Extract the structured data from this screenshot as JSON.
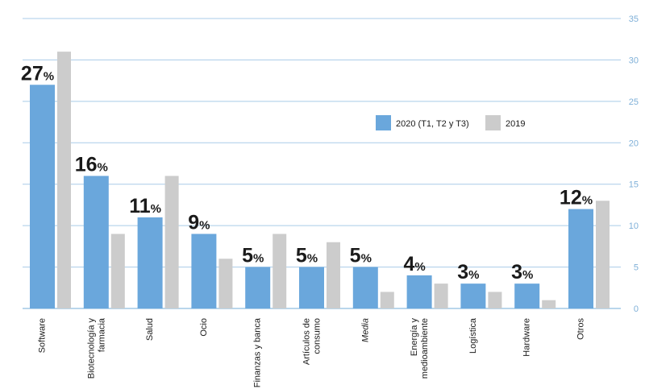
{
  "chart_data": {
    "type": "bar",
    "categories": [
      [
        "Software"
      ],
      [
        "Biotecnología y",
        "farmacia"
      ],
      [
        "Salud"
      ],
      [
        "Ocio"
      ],
      [
        "Finanzas y banca"
      ],
      [
        "Artículos de",
        "consumo"
      ],
      [
        "Media"
      ],
      [
        "Energía y",
        "medioambiente"
      ],
      [
        "Logística"
      ],
      [
        "Hardware"
      ],
      [
        "Otros"
      ]
    ],
    "category_italic": [
      false,
      false,
      false,
      false,
      false,
      false,
      true,
      false,
      false,
      false,
      false
    ],
    "series": [
      {
        "name": "2020 (T1, T2 y T3)",
        "values": [
          27,
          16,
          11,
          9,
          5,
          5,
          5,
          4,
          3,
          3,
          12
        ],
        "color": "#6aa7dc"
      },
      {
        "name": "2019",
        "values": [
          31,
          9,
          16,
          6,
          9,
          8,
          2,
          3,
          2,
          1,
          13
        ],
        "color": "#cccccc"
      }
    ],
    "data_labels": [
      "27",
      "16",
      "11",
      "9",
      "5",
      "5",
      "5",
      "4",
      "3",
      "3",
      "12"
    ],
    "data_label_suffix": "%",
    "ylim": [
      0,
      35
    ],
    "yticks": [
      "0",
      "5",
      "10",
      "15",
      "20",
      "25",
      "30",
      "35"
    ],
    "y_axis_side": "right",
    "grid": true,
    "gridline_color": "#a9cce8",
    "legend_position": "center-right"
  }
}
